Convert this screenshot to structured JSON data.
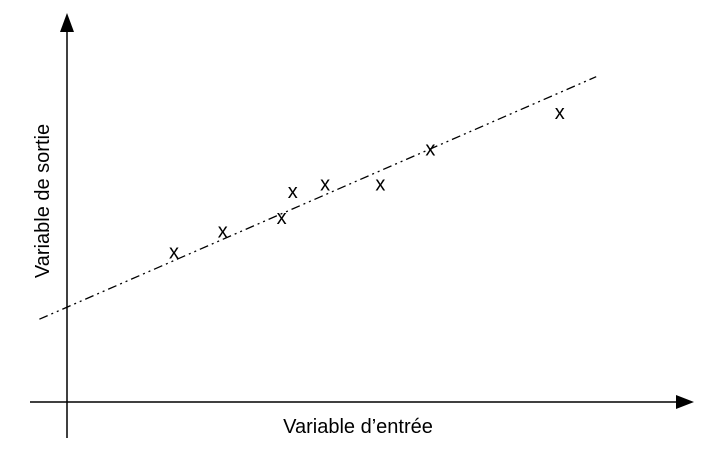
{
  "chart_data": {
    "type": "scatter",
    "title": "",
    "xlabel": "Variable d’entrée",
    "ylabel": "Variable de sortie",
    "x_ticks": [],
    "y_ticks": [],
    "grid": false,
    "legend": "none",
    "marker": "x",
    "xlim": [
      0,
      10
    ],
    "ylim": [
      0,
      10
    ],
    "series": [
      {
        "points": [
          {
            "x": 1.82,
            "y": 4.06
          },
          {
            "x": 2.65,
            "y": 4.63
          },
          {
            "x": 3.65,
            "y": 5.0
          },
          {
            "x": 3.84,
            "y": 5.71
          },
          {
            "x": 4.39,
            "y": 5.91
          },
          {
            "x": 5.33,
            "y": 5.91
          },
          {
            "x": 6.18,
            "y": 6.86
          },
          {
            "x": 8.38,
            "y": 7.86
          }
        ]
      }
    ],
    "trendline": {
      "style": "dash-dot-dot",
      "x": [
        -0.47,
        9.0
      ],
      "y": [
        2.25,
        8.84
      ]
    }
  }
}
